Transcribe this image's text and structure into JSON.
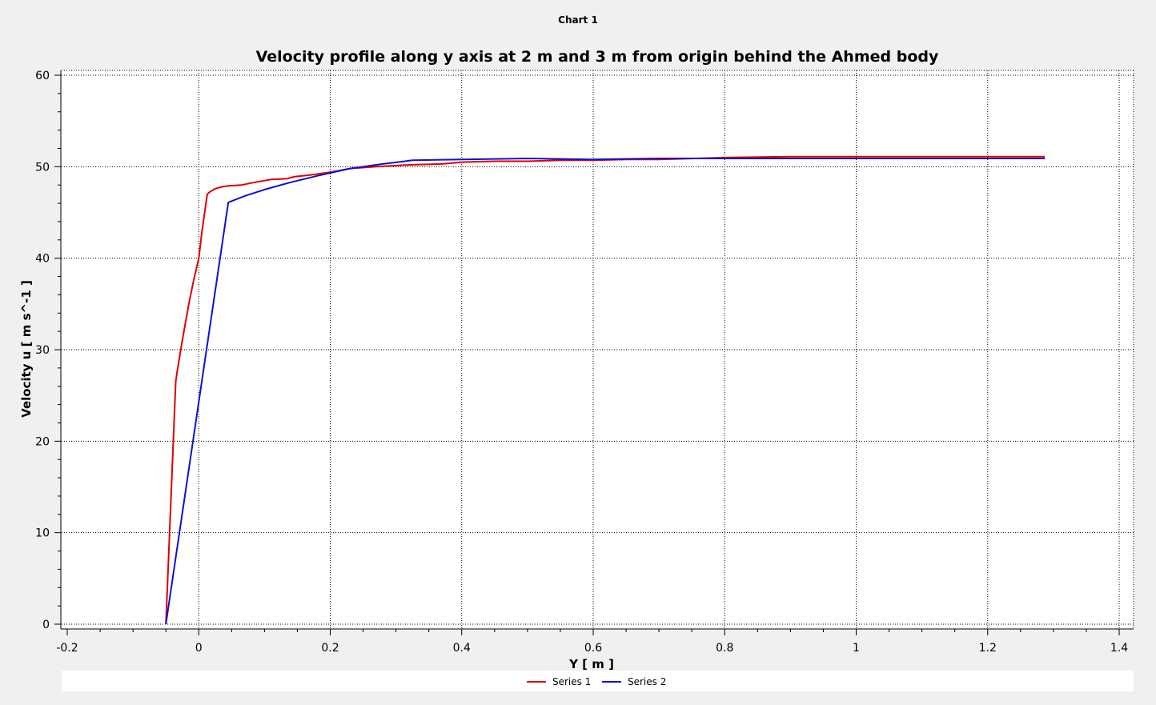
{
  "window": {
    "title": "Chart 1"
  },
  "chart_data": {
    "type": "line",
    "title": "Velocity profile along y axis at 2 m and 3 m from origin behind the Ahmed body",
    "xlabel": "Y [ m ]",
    "ylabel": "Velocity u [ m s^-1 ]",
    "xlim": [
      -0.2,
      1.4
    ],
    "ylim": [
      0,
      60
    ],
    "xticks": [
      -0.2,
      0,
      0.2,
      0.4,
      0.6,
      0.8,
      1,
      1.2,
      1.4
    ],
    "xtick_labels": [
      "-0.2",
      "0",
      "0.2",
      "0.4",
      "0.6",
      "0.8",
      "1",
      "1.2",
      "1.4"
    ],
    "yticks": [
      0,
      10,
      20,
      30,
      40,
      50,
      60
    ],
    "ytick_labels": [
      "0",
      "10",
      "20",
      "30",
      "40",
      "50",
      "60"
    ],
    "grid": true,
    "legend_position": "bottom",
    "series": [
      {
        "name": "Series 1",
        "color": "#e00000",
        "x": [
          -0.05,
          -0.035,
          -0.033,
          -0.025,
          -0.015,
          -0.008,
          0.0,
          0.005,
          0.013,
          0.018,
          0.025,
          0.035,
          0.045,
          0.065,
          0.085,
          0.11,
          0.135,
          0.145,
          0.17,
          0.2,
          0.23,
          0.27,
          0.32,
          0.37,
          0.4,
          0.45,
          0.5,
          0.55,
          0.6,
          0.65,
          0.7,
          0.8,
          0.9,
          1.0,
          1.1,
          1.2,
          1.287
        ],
        "y": [
          0.0,
          26.5,
          27.5,
          31.0,
          35.0,
          37.5,
          40.0,
          43.0,
          47.0,
          47.3,
          47.6,
          47.8,
          47.9,
          48.0,
          48.3,
          48.6,
          48.7,
          48.9,
          49.1,
          49.4,
          49.8,
          50.0,
          50.2,
          50.3,
          50.5,
          50.6,
          50.6,
          50.7,
          50.7,
          50.8,
          50.8,
          51.0,
          51.1,
          51.1,
          51.1,
          51.1,
          51.1
        ]
      },
      {
        "name": "Series 2",
        "color": "#1010d0",
        "x": [
          -0.05,
          0.045,
          0.07,
          0.1,
          0.14,
          0.18,
          0.23,
          0.28,
          0.325,
          0.4,
          0.5,
          0.6,
          0.7,
          0.8,
          0.9,
          1.0,
          1.1,
          1.2,
          1.287
        ],
        "y": [
          0.0,
          46.1,
          46.8,
          47.5,
          48.3,
          49.0,
          49.8,
          50.3,
          50.7,
          50.8,
          50.9,
          50.8,
          50.9,
          50.9,
          50.9,
          50.9,
          50.9,
          50.9,
          50.9
        ]
      }
    ]
  }
}
